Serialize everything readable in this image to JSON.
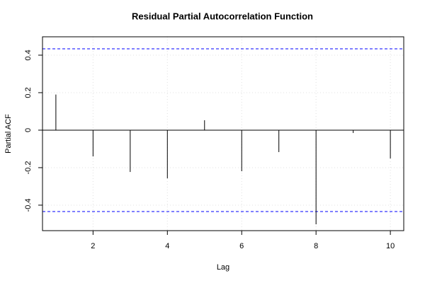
{
  "chart_data": {
    "type": "pacf",
    "title": "Residual Partial Autocorrelation Function",
    "x_label": "Lag",
    "y_label": "Partial ACF",
    "x": [
      1,
      2,
      3,
      4,
      5,
      6,
      7,
      8,
      9,
      10
    ],
    "values": [
      0.19,
      -0.14,
      -0.223,
      -0.257,
      0.053,
      -0.219,
      -0.117,
      -0.502,
      -0.015,
      -0.151
    ],
    "color": "#000000",
    "xlim": [
      0.64,
      10.36
    ],
    "xticks": [
      2,
      4,
      6,
      8,
      10
    ],
    "ylim": [
      -0.536,
      0.498
    ],
    "yticks": [
      -0.4,
      -0.2,
      0.0,
      0.2,
      0.4
    ],
    "baseline": 0,
    "confidence_limits": [
      0.434,
      -0.434
    ],
    "confidence_color": "#0000ff",
    "grid": true
  }
}
